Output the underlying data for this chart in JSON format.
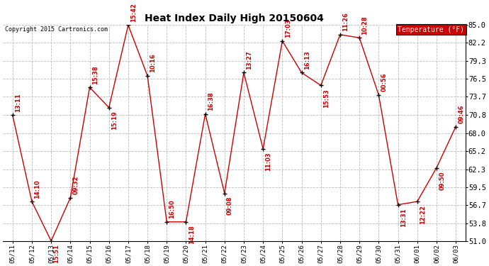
{
  "title": "Heat Index Daily High 20150604",
  "copyright": "Copyright 2015 Cartronics.com",
  "legend_label": "Temperature (°F)",
  "legend_bg": "#cc0000",
  "legend_text_color": "#ffffff",
  "line_color": "#cc0000",
  "marker_color": "#000000",
  "label_color": "#cc0000",
  "background_color": "#ffffff",
  "grid_color": "#bbbbbb",
  "ylim": [
    51.0,
    85.0
  ],
  "yticks": [
    51.0,
    53.8,
    56.7,
    59.5,
    62.3,
    65.2,
    68.0,
    70.8,
    73.7,
    76.5,
    79.3,
    82.2,
    85.0
  ],
  "dates": [
    "05/11",
    "05/12",
    "05/13",
    "05/14",
    "05/15",
    "05/16",
    "05/17",
    "05/18",
    "05/19",
    "05/20",
    "05/21",
    "05/22",
    "05/23",
    "05/24",
    "05/25",
    "05/26",
    "05/27",
    "05/28",
    "05/29",
    "05/30",
    "05/31",
    "06/01",
    "06/02",
    "06/03"
  ],
  "values": [
    70.8,
    57.2,
    51.0,
    57.8,
    75.2,
    72.0,
    85.0,
    77.0,
    54.0,
    54.0,
    71.0,
    58.5,
    77.5,
    65.5,
    82.5,
    77.5,
    75.5,
    83.5,
    83.0,
    74.0,
    56.7,
    57.2,
    62.5,
    69.0
  ],
  "labels": [
    "13:11",
    "14:10",
    "15:51",
    "09:32",
    "15:38",
    "15:19",
    "15:42",
    "10:16",
    "16:50",
    "14:18",
    "16:38",
    "09:08",
    "13:27",
    "11:03",
    "17:03",
    "16:13",
    "15:53",
    "11:26",
    "10:28",
    "00:56",
    "13:31",
    "12:22",
    "09:50",
    "09:46"
  ],
  "label_above": [
    true,
    true,
    false,
    true,
    true,
    false,
    true,
    true,
    true,
    false,
    true,
    false,
    true,
    false,
    true,
    true,
    false,
    true,
    true,
    true,
    false,
    false,
    false,
    true
  ]
}
